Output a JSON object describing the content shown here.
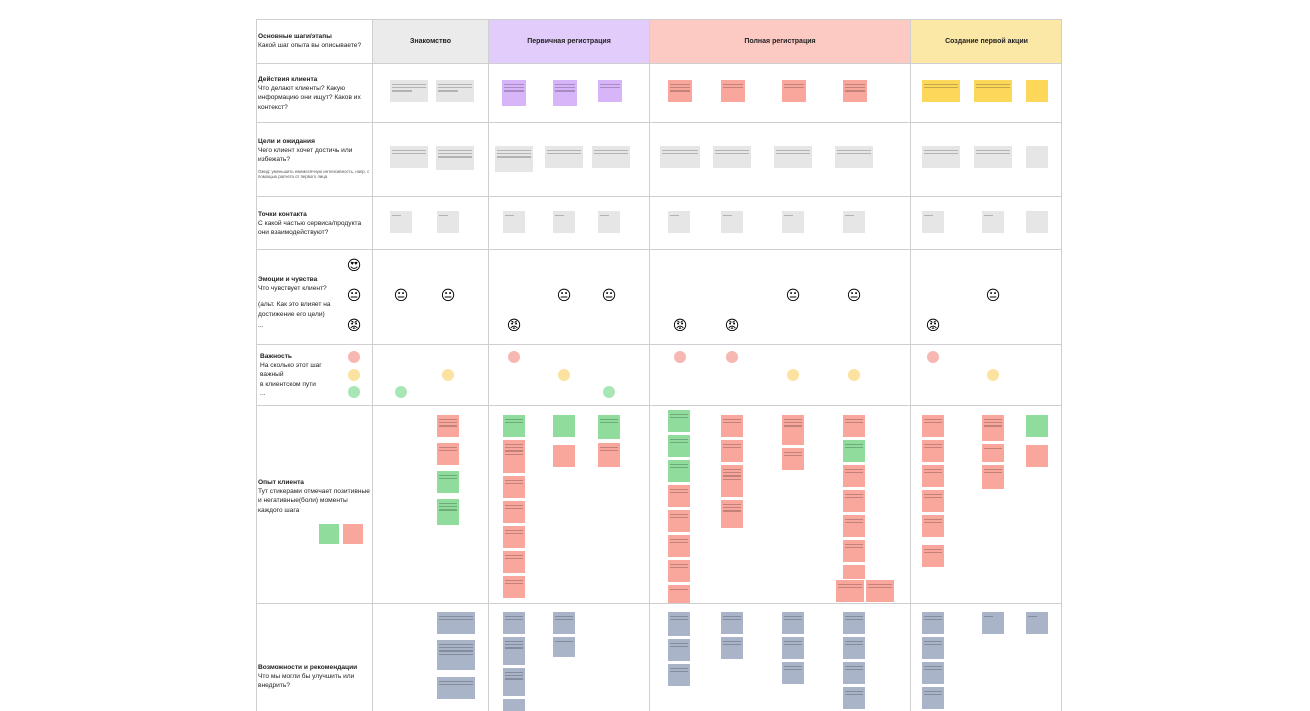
{
  "header": {
    "row_label_title": "Основные шаги/этапы",
    "row_label_sub": "Какой шаг опыта вы описываете?",
    "stages": [
      "Знакомство",
      "Первичная регистрация",
      "Полная регистрация",
      "Создание первой акции"
    ]
  },
  "rows": {
    "actions": {
      "title": "Действия клиента",
      "sub": "Что делают клиенты? Какую информацию они ищут? Каков их контекст?"
    },
    "goals": {
      "title": "Цели и ожидания",
      "sub": "Чего клиент хочет достичь или избежать?",
      "note": "Ожид: уменьшить ежемесячную интенсивность, напр. с помощью расчета от первого лица"
    },
    "touchpoints": {
      "title": "Точки контакта",
      "sub": "С какой частью сервиса/продукта они взаимодействуют?"
    },
    "emotions": {
      "title": "Эмоции и чувства",
      "sub": "Что чувствует клиент?",
      "alt": "(альт. Как это влияет на достижение его цели)",
      "more": "..."
    },
    "importance": {
      "title": "Важность",
      "line1": "На сколько этот шаг",
      "line2": "важный",
      "line3": "в клиентском пути",
      "more": "..."
    },
    "experience": {
      "title": "Опыт клиента",
      "sub": "Тут стикерами отмечает позитивные и негативные(боли) моменты каждого шага"
    },
    "opportunities": {
      "title": "Возможности и рекомендации",
      "sub": "Что мы могли бы улучшить или внедрить?"
    }
  },
  "emoji": {
    "love": "😍",
    "neutral": "😐",
    "angry": "😡"
  },
  "colors": {
    "stage_grey": "#ebebeb",
    "stage_purple": "#e2ccfb",
    "stage_red": "#fdc9c3",
    "stage_yellow": "#fce8a6",
    "sticky_positive": "#8fdc9c",
    "sticky_negative": "#f9a69c"
  }
}
